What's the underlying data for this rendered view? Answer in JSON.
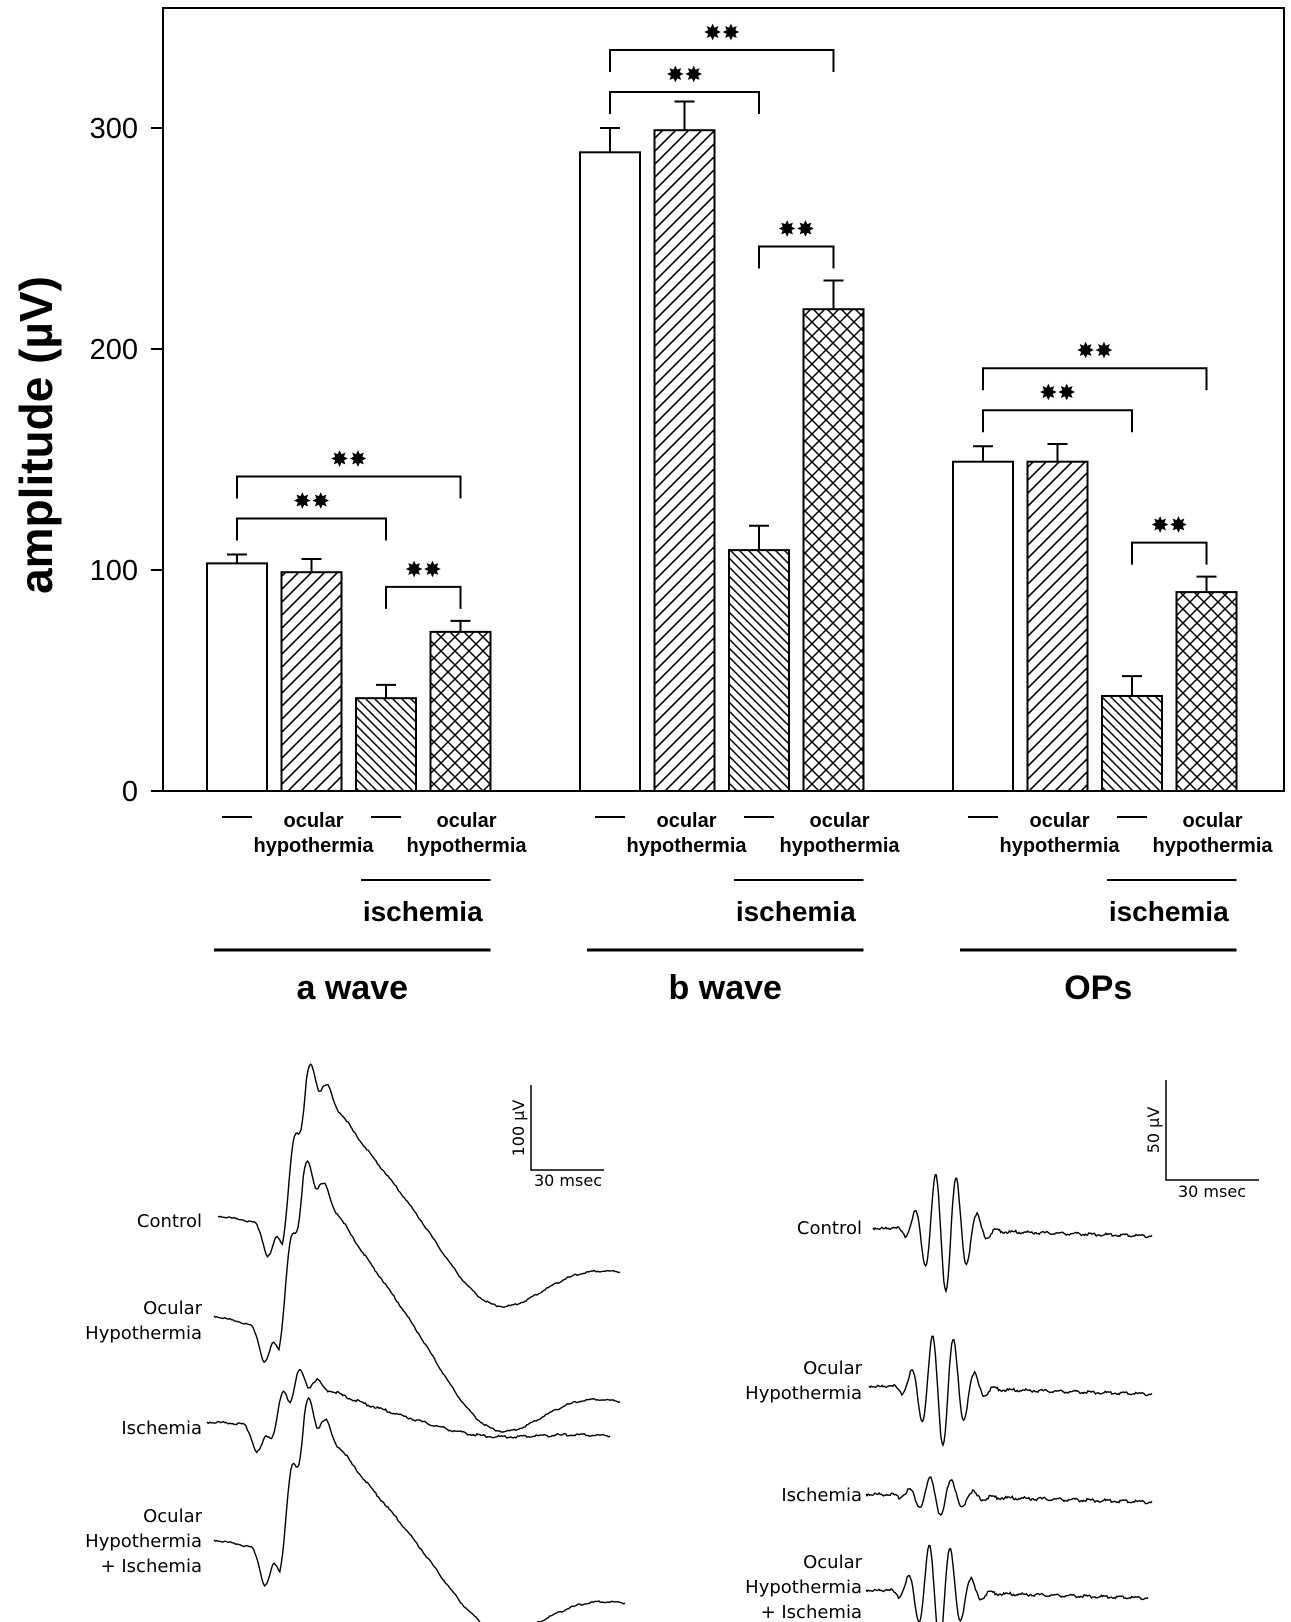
{
  "chart_data": {
    "type": "bar",
    "ylabel": "amplitude (µV)",
    "ylim": [
      0,
      350
    ],
    "yticks": [
      "0",
      "100",
      "200",
      "300"
    ],
    "grid": false,
    "legend": "none",
    "significance_label": "✸✸",
    "bar_labels": {
      "dash": "—",
      "ocular_line1": "ocular",
      "ocular_line2": "hypothermia",
      "ischemia": "ischemia"
    },
    "groups": [
      {
        "name": "a wave",
        "values": [
          103,
          99,
          42,
          72
        ],
        "errors": [
          4,
          6,
          6,
          5
        ],
        "patterns": [
          "none",
          "diag",
          "back",
          "cross"
        ],
        "significance": [
          [
            0,
            2
          ],
          [
            0,
            3
          ],
          [
            2,
            3
          ]
        ]
      },
      {
        "name": "b wave",
        "values": [
          289,
          299,
          109,
          218
        ],
        "errors": [
          11,
          13,
          11,
          13
        ],
        "patterns": [
          "none",
          "diag",
          "back",
          "cross"
        ],
        "significance": [
          [
            0,
            2
          ],
          [
            0,
            3
          ],
          [
            2,
            3
          ]
        ]
      },
      {
        "name": "OPs",
        "values": [
          149,
          149,
          43,
          90
        ],
        "errors": [
          7,
          8,
          9,
          7
        ],
        "patterns": [
          "none",
          "diag",
          "back",
          "cross"
        ],
        "significance": [
          [
            0,
            2
          ],
          [
            0,
            3
          ],
          [
            2,
            3
          ]
        ]
      }
    ]
  },
  "traces": {
    "erg": {
      "scale_y_label": "100 µV",
      "scale_x_label": "30 msec",
      "labels": [
        [
          "Control"
        ],
        [
          "Ocular",
          "Hypothermia"
        ],
        [
          "Ischemia"
        ],
        [
          "Ocular",
          "Hypothermia",
          "+ Ischemia"
        ]
      ]
    },
    "ops": {
      "scale_y_label": "50 µV",
      "scale_x_label": "30 msec",
      "labels": [
        [
          "Control"
        ],
        [
          "Ocular",
          "Hypothermia"
        ],
        [
          "Ischemia"
        ],
        [
          "Ocular",
          "Hypothermia",
          "+ Ischemia"
        ]
      ]
    }
  }
}
